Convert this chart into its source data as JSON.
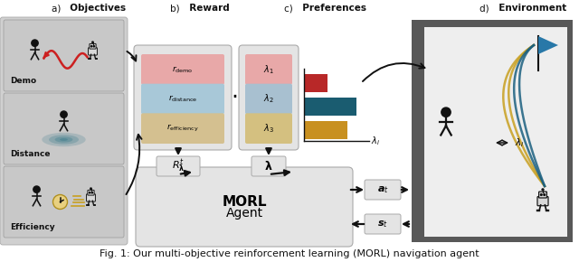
{
  "title": "Fig. 1: Our multi-objective reinforcement learning (MORL) navigation agent",
  "bg_color": "#ffffff",
  "panel_bg": "#d0d0d0",
  "box_bg": "#e4e4e4",
  "reward_colors": [
    "#e8a8a8",
    "#a8c8d8",
    "#d4c090"
  ],
  "pref_colors": [
    "#e8a8a8",
    "#a8c0d0",
    "#d4c080"
  ],
  "bar_colors": [
    "#b82828",
    "#1a5c70",
    "#c89020"
  ],
  "section_labels": [
    "a) Objectives",
    "b) Reward",
    "c) Preferences",
    "d) Environment"
  ],
  "objective_labels": [
    "Demo",
    "Distance",
    "Efficiency"
  ],
  "reward_latex": [
    "$r_{\\rm demo}$",
    "$r_{\\rm distance}$",
    "$r_{\\rm efficiency}$"
  ],
  "pref_latex": [
    "$\\lambda_1$",
    "$\\lambda_2$",
    "$\\lambda_3$"
  ],
  "bar_values": [
    0.38,
    0.85,
    0.7
  ],
  "arrow_color": "#111111",
  "curve_colors_gold": [
    "#c8a020",
    "#b89010"
  ],
  "curve_colors_teal": [
    "#1b6080",
    "#246a8a"
  ],
  "env_bg": "#585858",
  "env_inner_bg": "#eeeeee",
  "flag_color": "#2878a8",
  "morl_fontsize": 11,
  "caption_fontsize": 8
}
